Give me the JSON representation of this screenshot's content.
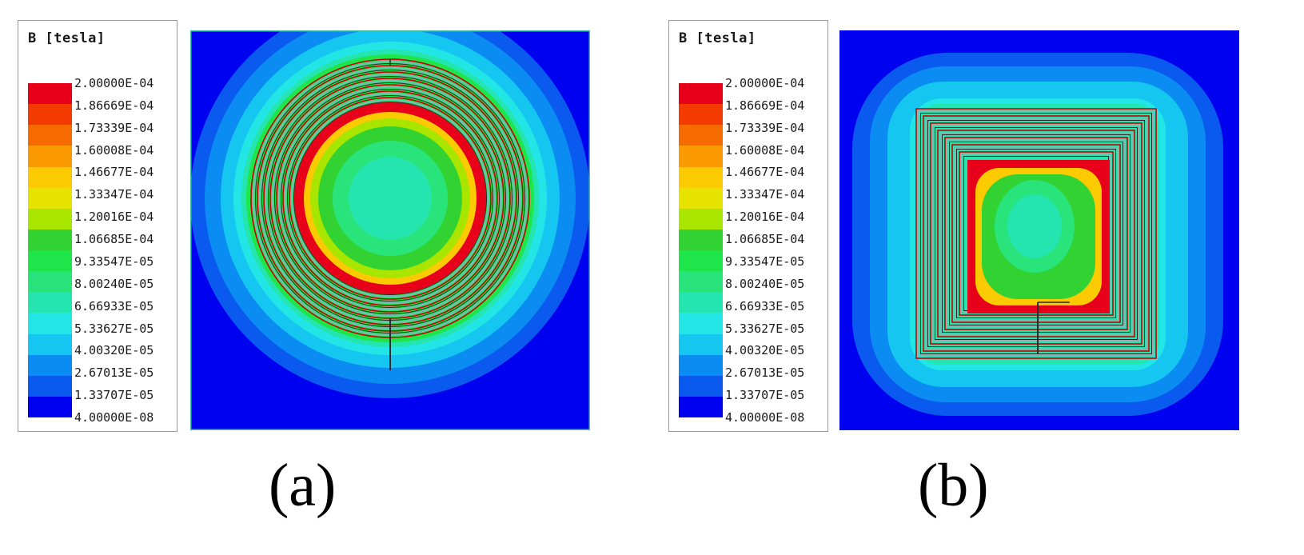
{
  "panels": [
    {
      "legend": {
        "title": "B [tesla]",
        "ticks": [
          "2.00000E-04",
          "1.86669E-04",
          "1.73339E-04",
          "1.60008E-04",
          "1.46677E-04",
          "1.33347E-04",
          "1.20016E-04",
          "1.06685E-04",
          "9.33547E-05",
          "8.00240E-05",
          "6.66933E-05",
          "5.33627E-05",
          "4.00320E-05",
          "2.67013E-05",
          "1.33707E-05",
          "4.00000E-08"
        ]
      },
      "coil_shape": "circular",
      "caption": "(a)"
    },
    {
      "legend": {
        "title": "B [tesla]",
        "ticks": [
          "2.00000E-04",
          "1.86669E-04",
          "1.73339E-04",
          "1.60008E-04",
          "1.46677E-04",
          "1.33347E-04",
          "1.20016E-04",
          "1.06685E-04",
          "9.33547E-05",
          "8.00240E-05",
          "6.66933E-05",
          "5.33627E-05",
          "4.00320E-05",
          "2.67013E-05",
          "1.33707E-05",
          "4.00000E-08"
        ]
      },
      "coil_shape": "square",
      "caption": "(b)"
    }
  ],
  "colorscale": [
    "#e8001a",
    "#f33a00",
    "#f56b00",
    "#fa9a00",
    "#fcca00",
    "#e6e300",
    "#a8e600",
    "#33d233",
    "#1ee64a",
    "#28e47a",
    "#24e4b0",
    "#22e6e6",
    "#14c6f0",
    "#0a8cf2",
    "#0a5af0",
    "#0000f0"
  ]
}
